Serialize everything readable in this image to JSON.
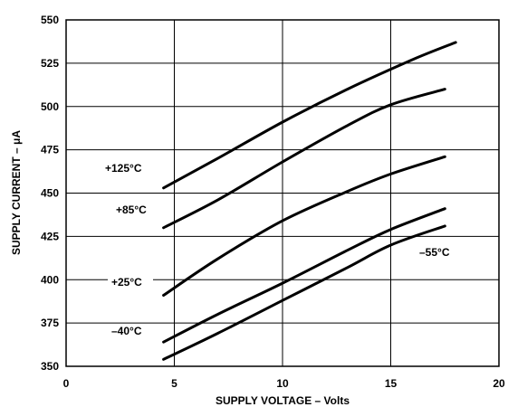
{
  "chart_data": {
    "type": "line",
    "title": "",
    "xlabel": "SUPPLY VOLTAGE – Volts",
    "ylabel": "SUPPLY CURRENT – μA",
    "xlim": [
      0,
      20
    ],
    "ylim": [
      350,
      550
    ],
    "x_ticks": [
      "0",
      "5",
      "10",
      "15",
      "20"
    ],
    "y_ticks": [
      "350",
      "375",
      "400",
      "425",
      "450",
      "475",
      "500",
      "525",
      "550"
    ],
    "grid": true,
    "series": [
      {
        "name": "+125°C",
        "x": [
          4.5,
          7,
          10,
          13,
          16,
          18
        ],
        "y": [
          453,
          470,
          491,
          510,
          527,
          537
        ]
      },
      {
        "name": "+85°C",
        "x": [
          4.5,
          7,
          10,
          13,
          15,
          17.5
        ],
        "y": [
          430,
          446,
          468,
          489,
          501,
          510
        ]
      },
      {
        "name": "+25°C",
        "x": [
          4.5,
          7,
          10,
          13,
          15,
          17.5
        ],
        "y": [
          391,
          412,
          434,
          451,
          461,
          471
        ]
      },
      {
        "name": "–40°C",
        "x": [
          4.5,
          7,
          10,
          13,
          15,
          17.5
        ],
        "y": [
          364,
          380,
          398,
          417,
          429,
          441
        ]
      },
      {
        "name": "–55°C",
        "x": [
          4.5,
          7,
          10,
          13,
          15,
          17.5
        ],
        "y": [
          354,
          369,
          388,
          407,
          420,
          431
        ]
      }
    ]
  }
}
